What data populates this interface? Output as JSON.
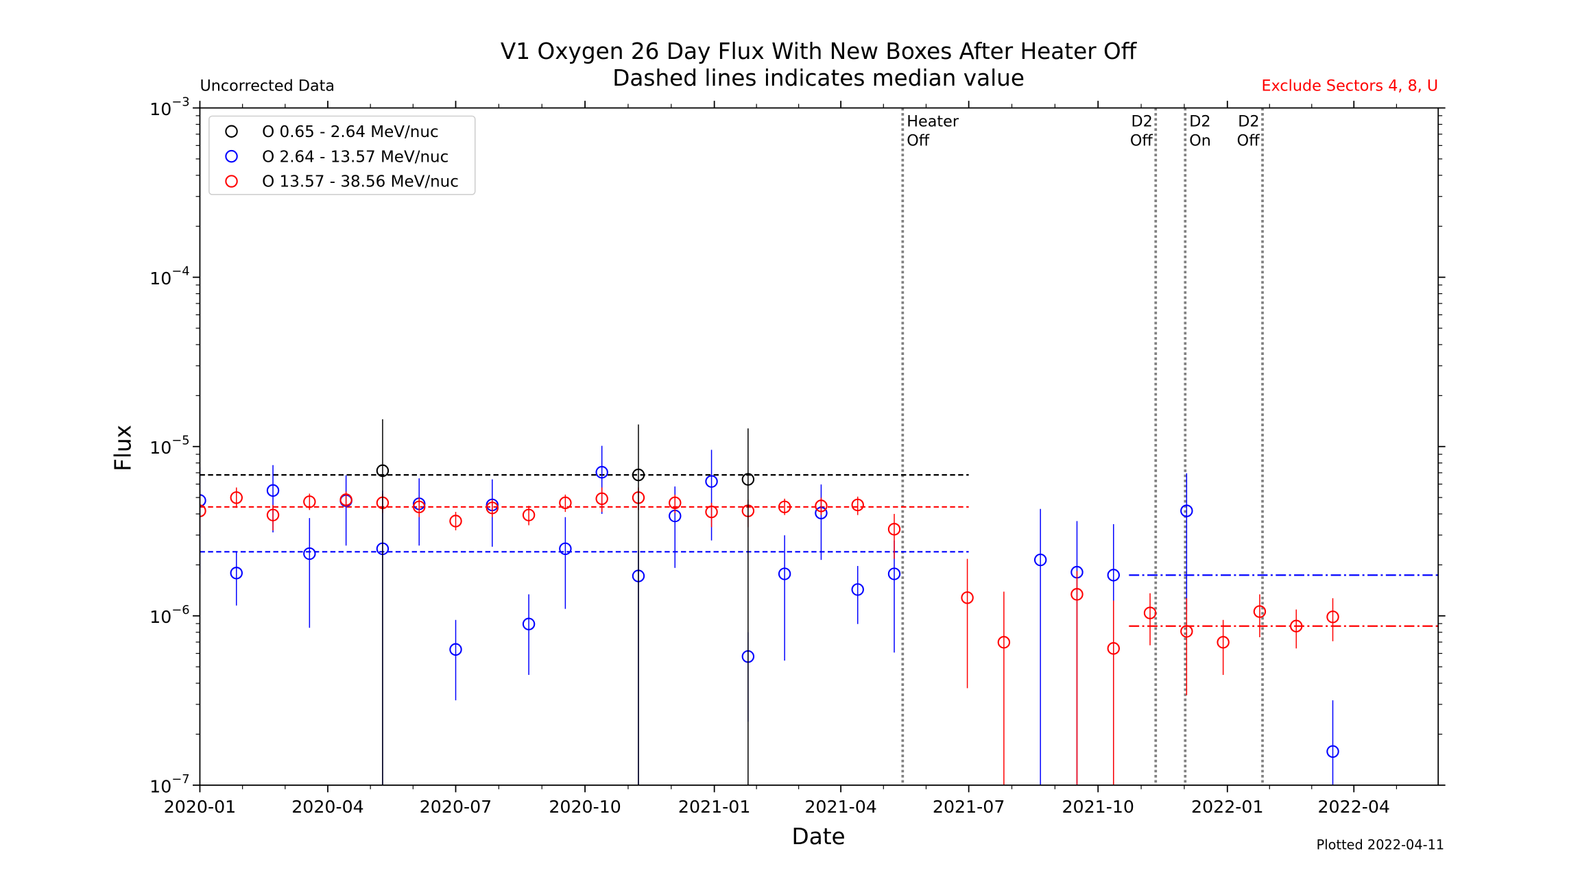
{
  "chart_data": {
    "type": "scatter",
    "title": "V1 Oxygen 26 Day Flux With New Boxes After Heater Off",
    "subtitle": "Dashed lines indicates median value",
    "top_left_note": "Uncorrected Data",
    "top_right_note": "Exclude Sectors 4, 8, U",
    "top_right_note_color": "#ff0000",
    "footer_note": "Plotted 2022-04-11",
    "xlabel": "Date",
    "ylabel": "Flux",
    "x_unit": "days since 2020-01-01",
    "xlim": [
      0,
      881
    ],
    "xticks": [
      {
        "day": 0,
        "label": "2020-01"
      },
      {
        "day": 91,
        "label": "2020-04"
      },
      {
        "day": 182,
        "label": "2020-07"
      },
      {
        "day": 274,
        "label": "2020-10"
      },
      {
        "day": 366,
        "label": "2021-01"
      },
      {
        "day": 456,
        "label": "2021-04"
      },
      {
        "day": 547,
        "label": "2021-07"
      },
      {
        "day": 639,
        "label": "2021-10"
      },
      {
        "day": 731,
        "label": "2022-01"
      },
      {
        "day": 821,
        "label": "2022-04"
      }
    ],
    "yscale": "log",
    "ylim": [
      1e-07,
      0.001
    ],
    "yticks": [
      {
        "value": 0.001,
        "base": "10",
        "exp": "−3"
      },
      {
        "value": 0.0001,
        "base": "10",
        "exp": "−4"
      },
      {
        "value": 1e-05,
        "base": "10",
        "exp": "−5"
      },
      {
        "value": 1e-06,
        "base": "10",
        "exp": "−6"
      },
      {
        "value": 1e-07,
        "base": "10",
        "exp": "−7"
      }
    ],
    "legend_position": "top-left",
    "series": [
      {
        "name": "O 0.65 - 2.64 MeV/nuc",
        "color": "#000000",
        "points": [
          {
            "x": 130,
            "y": 7.2e-06,
            "hi": 1.45e-05,
            "lo": 1e-07
          },
          {
            "x": 312,
            "y": 6.8e-06,
            "hi": 1.35e-05,
            "lo": 1e-07
          },
          {
            "x": 390,
            "y": 6.4e-06,
            "hi": 1.28e-05,
            "lo": 1e-07
          }
        ],
        "medians": [
          {
            "value": 6.8e-06,
            "from": 0,
            "to": 547,
            "style": "dashed"
          }
        ]
      },
      {
        "name": "O 2.64 - 13.57 MeV/nuc",
        "color": "#0000ff",
        "points": [
          {
            "x": 0,
            "y": 4.8e-06,
            "hi": 7.55e-06,
            "lo": 1.77e-06
          },
          {
            "x": 26,
            "y": 1.79e-06,
            "hi": 2.39e-06,
            "lo": 1.15e-06
          },
          {
            "x": 52,
            "y": 5.5e-06,
            "hi": 7.77e-06,
            "lo": 3.11e-06
          },
          {
            "x": 78,
            "y": 2.33e-06,
            "hi": 3.78e-06,
            "lo": 8.5e-07
          },
          {
            "x": 104,
            "y": 4.79e-06,
            "hi": 6.76e-06,
            "lo": 2.6e-06
          },
          {
            "x": 130,
            "y": 2.49e-06,
            "hi": 5.5e-06,
            "lo": 1e-07
          },
          {
            "x": 156,
            "y": 4.59e-06,
            "hi": 6.49e-06,
            "lo": 2.6e-06
          },
          {
            "x": 182,
            "y": 6.33e-07,
            "hi": 9.46e-07,
            "lo": 3.17e-07
          },
          {
            "x": 208,
            "y": 4.52e-06,
            "hi": 6.4e-06,
            "lo": 2.56e-06
          },
          {
            "x": 234,
            "y": 8.95e-07,
            "hi": 1.34e-06,
            "lo": 4.48e-07
          },
          {
            "x": 260,
            "y": 2.49e-06,
            "hi": 3.83e-06,
            "lo": 1.1e-06
          },
          {
            "x": 286,
            "y": 7.05e-06,
            "hi": 1.01e-05,
            "lo": 4e-06
          },
          {
            "x": 312,
            "y": 1.72e-06,
            "hi": 2.43e-06,
            "lo": 1e-07
          },
          {
            "x": 338,
            "y": 3.89e-06,
            "hi": 5.81e-06,
            "lo": 1.92e-06
          },
          {
            "x": 364,
            "y": 6.22e-06,
            "hi": 9.56e-06,
            "lo": 2.79e-06
          },
          {
            "x": 390,
            "y": 5.75e-07,
            "hi": 8e-07,
            "lo": 2.37e-07
          },
          {
            "x": 416,
            "y": 1.77e-06,
            "hi": 2.99e-06,
            "lo": 5.44e-07
          },
          {
            "x": 442,
            "y": 4.05e-06,
            "hi": 5.97e-06,
            "lo": 2.14e-06
          },
          {
            "x": 468,
            "y": 1.43e-06,
            "hi": 1.97e-06,
            "lo": 8.95e-07
          },
          {
            "x": 494,
            "y": 1.77e-06,
            "hi": 2.79e-06,
            "lo": 6.07e-07
          },
          {
            "x": 598,
            "y": 2.14e-06,
            "hi": 4.28e-06,
            "lo": 1e-07
          },
          {
            "x": 624,
            "y": 1.81e-06,
            "hi": 3.63e-06,
            "lo": 1e-07
          },
          {
            "x": 650,
            "y": 1.74e-06,
            "hi": 3.48e-06,
            "lo": 1e-07
          },
          {
            "x": 702,
            "y": 4.17e-06,
            "hi": 6.95e-06,
            "lo": 1.06e-06
          },
          {
            "x": 806,
            "y": 1.58e-07,
            "hi": 3.17e-07,
            "lo": 1e-07
          }
        ],
        "medians": [
          {
            "value": 2.39e-06,
            "from": 0,
            "to": 547,
            "style": "dashed"
          },
          {
            "value": 1.74e-06,
            "from": 661,
            "to": 881,
            "style": "dashdot"
          }
        ]
      },
      {
        "name": "O 13.57 - 38.56 MeV/nuc",
        "color": "#ff0000",
        "points": [
          {
            "x": 0,
            "y": 4.17e-06,
            "hi": 5.2e-06,
            "lo": 3.2e-06
          },
          {
            "x": 26,
            "y": 4.99e-06,
            "hi": 5.73e-06,
            "lo": 4.34e-06
          },
          {
            "x": 52,
            "y": 3.94e-06,
            "hi": 4.52e-06,
            "lo": 3.2e-06
          },
          {
            "x": 78,
            "y": 4.72e-06,
            "hi": 5.27e-06,
            "lo": 4.22e-06
          },
          {
            "x": 104,
            "y": 4.85e-06,
            "hi": 5.42e-06,
            "lo": 4.4e-06
          },
          {
            "x": 130,
            "y": 4.65e-06,
            "hi": 5.27e-06,
            "lo": 4.05e-06
          },
          {
            "x": 156,
            "y": 4.4e-06,
            "hi": 4.99e-06,
            "lo": 3.83e-06
          },
          {
            "x": 182,
            "y": 3.63e-06,
            "hi": 4.11e-06,
            "lo": 3.2e-06
          },
          {
            "x": 208,
            "y": 4.34e-06,
            "hi": 4.85e-06,
            "lo": 3.83e-06
          },
          {
            "x": 234,
            "y": 3.94e-06,
            "hi": 4.46e-06,
            "lo": 3.43e-06
          },
          {
            "x": 260,
            "y": 4.65e-06,
            "hi": 5.2e-06,
            "lo": 4.11e-06
          },
          {
            "x": 286,
            "y": 4.92e-06,
            "hi": 5.73e-06,
            "lo": 4.11e-06
          },
          {
            "x": 312,
            "y": 4.99e-06,
            "hi": 5.73e-06,
            "lo": 4.22e-06
          },
          {
            "x": 338,
            "y": 4.65e-06,
            "hi": 5.2e-06,
            "lo": 4.05e-06
          },
          {
            "x": 364,
            "y": 4.11e-06,
            "hi": 4.65e-06,
            "lo": 3.34e-06
          },
          {
            "x": 390,
            "y": 4.17e-06,
            "hi": 4.85e-06,
            "lo": 3.34e-06
          },
          {
            "x": 416,
            "y": 4.4e-06,
            "hi": 4.92e-06,
            "lo": 3.94e-06
          },
          {
            "x": 442,
            "y": 4.46e-06,
            "hi": 4.99e-06,
            "lo": 3.94e-06
          },
          {
            "x": 468,
            "y": 4.52e-06,
            "hi": 5.06e-06,
            "lo": 3.94e-06
          },
          {
            "x": 494,
            "y": 3.25e-06,
            "hi": 4e-06,
            "lo": 2.17e-06
          },
          {
            "x": 546,
            "y": 1.28e-06,
            "hi": 2.17e-06,
            "lo": 3.74e-07
          },
          {
            "x": 572,
            "y": 6.98e-07,
            "hi": 1.39e-06,
            "lo": 1e-07
          },
          {
            "x": 624,
            "y": 1.34e-06,
            "hi": 1.84e-06,
            "lo": 1e-07
          },
          {
            "x": 650,
            "y": 6.42e-07,
            "hi": 1.23e-06,
            "lo": 1e-07
          },
          {
            "x": 676,
            "y": 1.04e-06,
            "hi": 1.36e-06,
            "lo": 6.7e-07
          },
          {
            "x": 702,
            "y": 8.1e-07,
            "hi": 1.27e-06,
            "lo": 3.4e-07
          },
          {
            "x": 728,
            "y": 6.98e-07,
            "hi": 9.46e-07,
            "lo": 4.48e-07
          },
          {
            "x": 754,
            "y": 1.06e-06,
            "hi": 1.34e-06,
            "lo": 7.48e-07
          },
          {
            "x": 780,
            "y": 8.7e-07,
            "hi": 1.09e-06,
            "lo": 6.42e-07
          },
          {
            "x": 806,
            "y": 9.86e-07,
            "hi": 1.27e-06,
            "lo": 7.08e-07
          }
        ],
        "medians": [
          {
            "value": 4.4e-06,
            "from": 0,
            "to": 547,
            "style": "dashed"
          },
          {
            "value": 8.7e-07,
            "from": 661,
            "to": 881,
            "style": "dashdot"
          }
        ]
      }
    ],
    "events": [
      {
        "day": 500,
        "line1": "Heater",
        "line2": "Off",
        "align": "right"
      },
      {
        "day": 680,
        "line1": "D2",
        "line2": "Off",
        "align": "left"
      },
      {
        "day": 701,
        "line1": "D2",
        "line2": "On",
        "align": "right"
      },
      {
        "day": 756,
        "line1": "D2",
        "line2": "Off",
        "align": "left"
      }
    ]
  }
}
